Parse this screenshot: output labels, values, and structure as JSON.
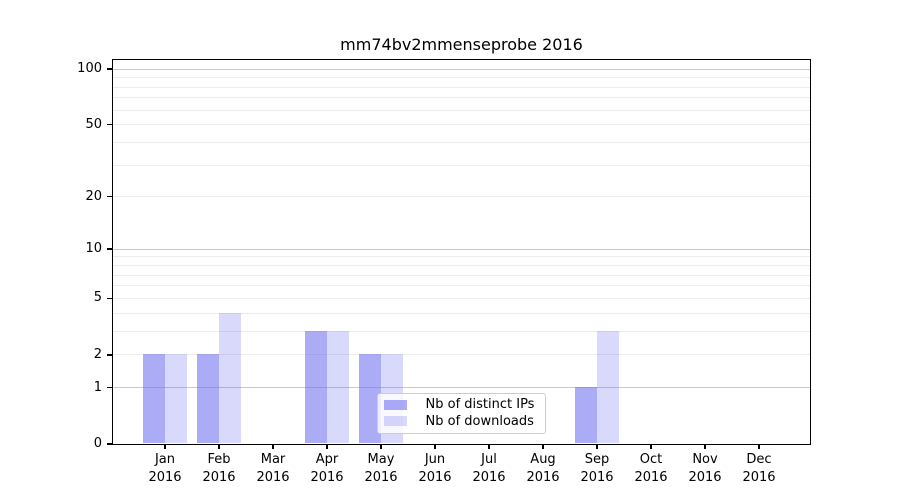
{
  "chart_data": {
    "type": "bar",
    "title": "mm74bv2mmenseprobe 2016",
    "categories": [
      "Jan 2016",
      "Feb 2016",
      "Mar 2016",
      "Apr 2016",
      "May 2016",
      "Jun 2016",
      "Jul 2016",
      "Aug 2016",
      "Sep 2016",
      "Oct 2016",
      "Nov 2016",
      "Dec 2016"
    ],
    "series": [
      {
        "name": "Nb of distinct IPs",
        "color": "#6666ee",
        "alpha": 0.55,
        "values": [
          2,
          2,
          0,
          3,
          2,
          0,
          0,
          0,
          1,
          0,
          0,
          0
        ]
      },
      {
        "name": "Nb of downloads",
        "color": "#6666ee",
        "alpha": 0.25,
        "values": [
          2,
          4,
          0,
          3,
          2,
          0,
          0,
          0,
          3,
          0,
          0,
          0
        ]
      }
    ],
    "xlabel": "",
    "ylabel": "",
    "y_axis": {
      "scale": "log(value+1)",
      "range": [
        0,
        112
      ],
      "tick_values": [
        0,
        1,
        2,
        5,
        10,
        20,
        50,
        100
      ],
      "tick_labels": [
        "0",
        "1",
        "2",
        "5",
        "10",
        "20",
        "50",
        "100"
      ],
      "major_gridlines": [
        1,
        10,
        100
      ],
      "minor_gridlines": [
        2,
        3,
        4,
        5,
        6,
        7,
        8,
        9,
        20,
        30,
        40,
        50,
        60,
        70,
        80,
        90
      ]
    },
    "grid": true,
    "legend": {
      "position": "lower center",
      "entries": [
        "Nb of distinct IPs",
        "Nb of downloads"
      ]
    }
  },
  "colors": {
    "background": "#ffffff",
    "spine": "#000000",
    "text": "#000000",
    "major_gridline": "#c9c9c9",
    "minor_gridline": "#ececec",
    "legend_border": "#cccccc"
  }
}
